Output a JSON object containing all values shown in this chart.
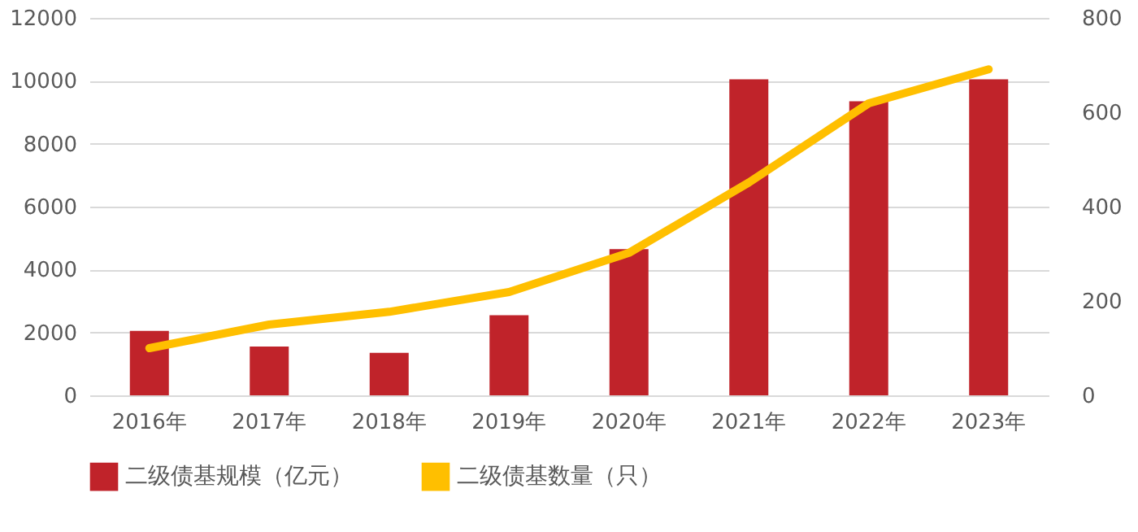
{
  "chart_data": {
    "type": "bar",
    "categories": [
      "2016年",
      "2017年",
      "2018年",
      "2019年",
      "2020年",
      "2021年",
      "2022年",
      "2023年"
    ],
    "series": [
      {
        "name": "二级债基规模（亿元）",
        "color": "#c0232a",
        "values": [
          2050,
          1550,
          1350,
          2550,
          4650,
          10050,
          9350,
          10050
        ]
      },
      {
        "name": "二级债基数量（只）",
        "type": "line",
        "axis": "y2",
        "color": "#ffbf00",
        "values": [
          100,
          150,
          177,
          219,
          302,
          451,
          619,
          691
        ]
      }
    ],
    "ylim": [
      0,
      12000
    ],
    "yticks": [
      0,
      2000,
      4000,
      6000,
      8000,
      10000,
      12000
    ],
    "y2lim": [
      0,
      800
    ],
    "y2ticks": [
      0,
      200,
      400,
      600,
      800
    ],
    "grid": "y",
    "legend": "bottom"
  }
}
